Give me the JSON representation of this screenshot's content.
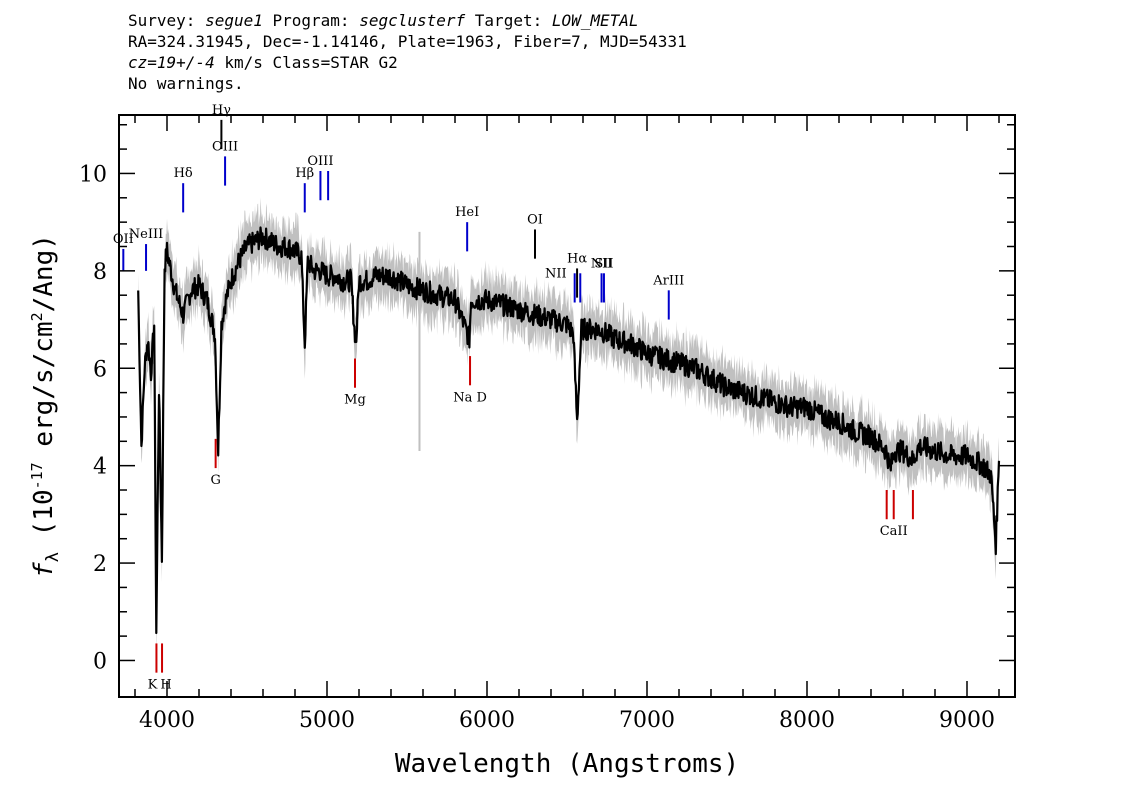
{
  "header": {
    "survey_label": "Survey: ",
    "survey": "segue1",
    "program_label": " Program: ",
    "program": "segclusterf",
    "target_label": " Target: ",
    "target": "LOW_METAL",
    "line2": "RA=324.31945, Dec=-1.14146, Plate=1963, Fiber=7, MJD=54331",
    "cz_label": "cz=19+/-4",
    "line3_rest": " km/s Class=STAR G2",
    "line4": "No warnings."
  },
  "chart_data": {
    "type": "line",
    "xlabel": "Wavelength (Angstroms)",
    "ylabel": "f_λ (10^-17 erg/s/cm^2/Ang)",
    "xlim": [
      3700,
      9300
    ],
    "ylim": [
      -0.75,
      11.2
    ],
    "xticks": [
      4000,
      5000,
      6000,
      7000,
      8000,
      9000
    ],
    "yticks": [
      0,
      2,
      4,
      6,
      8,
      10
    ],
    "grid": false,
    "series": [
      {
        "role": "flux",
        "color": "#000000",
        "x": [
          3820,
          3840,
          3860,
          3880,
          3900,
          3920,
          3933,
          3950,
          3968,
          3985,
          4000,
          4050,
          4101,
          4150,
          4200,
          4250,
          4300,
          4320,
          4340,
          4360,
          4400,
          4450,
          4500,
          4550,
          4600,
          4650,
          4700,
          4750,
          4800,
          4840,
          4861,
          4880,
          4920,
          4960,
          5000,
          5050,
          5100,
          5150,
          5172,
          5183,
          5200,
          5250,
          5300,
          5400,
          5500,
          5600,
          5700,
          5800,
          5890,
          5900,
          6000,
          6100,
          6200,
          6300,
          6400,
          6500,
          6540,
          6563,
          6590,
          6650,
          6700,
          6800,
          6900,
          7000,
          7100,
          7200,
          7300,
          7400,
          7500,
          7600,
          7700,
          7800,
          7900,
          8000,
          8100,
          8200,
          8300,
          8400,
          8498,
          8520,
          8542,
          8600,
          8662,
          8700,
          8800,
          8900,
          9000,
          9100,
          9150,
          9180,
          9200
        ],
        "y": [
          7.6,
          4.4,
          6.0,
          6.6,
          5.9,
          6.9,
          0.6,
          5.6,
          2.1,
          8.1,
          8.4,
          7.6,
          7.1,
          7.6,
          7.7,
          7.4,
          6.7,
          4.3,
          6.9,
          7.3,
          7.8,
          8.2,
          8.5,
          8.6,
          8.7,
          8.6,
          8.5,
          8.5,
          8.4,
          8.3,
          6.5,
          8.2,
          8.0,
          8.0,
          7.9,
          7.9,
          7.8,
          7.8,
          6.8,
          6.6,
          7.8,
          7.8,
          7.9,
          7.9,
          7.7,
          7.6,
          7.5,
          7.4,
          6.6,
          7.4,
          7.4,
          7.3,
          7.2,
          7.1,
          7.0,
          6.9,
          6.7,
          4.9,
          6.8,
          6.8,
          6.8,
          6.6,
          6.5,
          6.3,
          6.2,
          6.1,
          6.0,
          5.8,
          5.6,
          5.5,
          5.4,
          5.3,
          5.2,
          5.2,
          5.0,
          4.9,
          4.7,
          4.6,
          4.3,
          3.9,
          4.3,
          4.3,
          4.1,
          4.4,
          4.3,
          4.2,
          4.2,
          4.0,
          3.8,
          2.4,
          4.1
        ]
      }
    ],
    "line_markers": [
      {
        "label": "OII",
        "x": 3727,
        "y_top": 8.45,
        "y_bottom": 8.0,
        "color": "#0000cc",
        "position": "above"
      },
      {
        "label": "NeIII",
        "x": 3869,
        "y_top": 8.55,
        "y_bottom": 8.0,
        "color": "#0000cc",
        "position": "above"
      },
      {
        "label": "Hδ",
        "x": 4101,
        "y_top": 9.8,
        "y_bottom": 9.2,
        "color": "#0000cc",
        "position": "above"
      },
      {
        "label": "Hγ",
        "x": 4340,
        "y_top": 11.1,
        "y_bottom": 10.5,
        "color": "#000000",
        "position": "above"
      },
      {
        "label": "OIII",
        "x": 4363,
        "y_top": 10.35,
        "y_bottom": 9.75,
        "color": "#0000cc",
        "position": "above"
      },
      {
        "label": "Hβ",
        "x": 4861,
        "y_top": 9.8,
        "y_bottom": 9.2,
        "color": "#0000cc",
        "position": "above"
      },
      {
        "label": "OIII",
        "x": 4959,
        "y_top": 10.05,
        "y_bottom": 9.45,
        "color": "#0000cc",
        "position": "above"
      },
      {
        "label": "",
        "x": 5007,
        "y_top": 10.05,
        "y_bottom": 9.45,
        "color": "#0000cc",
        "position": "above"
      },
      {
        "label": "HeI",
        "x": 5876,
        "y_top": 9.0,
        "y_bottom": 8.4,
        "color": "#0000cc",
        "position": "above"
      },
      {
        "label": "OI",
        "x": 6300,
        "y_top": 8.85,
        "y_bottom": 8.25,
        "color": "#000000",
        "position": "above"
      },
      {
        "label": "NII",
        "x": 6548,
        "y_top": 7.95,
        "y_bottom": 7.35,
        "color": "#0000cc",
        "position": "left"
      },
      {
        "label": "Hα",
        "x": 6563,
        "y_top": 8.05,
        "y_bottom": 7.45,
        "color": "#000000",
        "position": "above"
      },
      {
        "label": "",
        "x": 6583,
        "y_top": 7.95,
        "y_bottom": 7.35,
        "color": "#0000cc",
        "position": "above"
      },
      {
        "label": "NII",
        "x": 6716,
        "y_top": 7.95,
        "y_bottom": 7.35,
        "color": "#0000cc",
        "position": "above"
      },
      {
        "label": "SII",
        "x": 6731,
        "y_top": 7.95,
        "y_bottom": 7.35,
        "color": "#0000cc",
        "position": "above"
      },
      {
        "label": "ArIII",
        "x": 7136,
        "y_top": 7.6,
        "y_bottom": 7.0,
        "color": "#0000cc",
        "position": "above"
      },
      {
        "label": "K",
        "x": 3934,
        "y_top": 0.35,
        "y_bottom": -0.25,
        "color": "#cc0000",
        "position": "below"
      },
      {
        "label": "H",
        "x": 3969,
        "y_top": 0.35,
        "y_bottom": -0.25,
        "color": "#cc0000",
        "position": "below"
      },
      {
        "label": "G",
        "x": 4304,
        "y_top": 4.55,
        "y_bottom": 3.95,
        "color": "#cc0000",
        "position": "below"
      },
      {
        "label": "Mg",
        "x": 5175,
        "y_top": 6.2,
        "y_bottom": 5.6,
        "color": "#cc0000",
        "position": "below"
      },
      {
        "label": "Na D",
        "x": 5894,
        "y_top": 6.25,
        "y_bottom": 5.65,
        "color": "#cc0000",
        "position": "below"
      },
      {
        "label": "",
        "x": 8498,
        "y_top": 3.5,
        "y_bottom": 2.9,
        "color": "#cc0000",
        "position": "below"
      },
      {
        "label": "CaII",
        "x": 8542,
        "y_top": 3.5,
        "y_bottom": 2.9,
        "color": "#cc0000",
        "position": "below"
      },
      {
        "label": "",
        "x": 8662,
        "y_top": 3.5,
        "y_bottom": 2.9,
        "color": "#cc0000",
        "position": "below"
      }
    ],
    "colors": {
      "flux": "#000000",
      "error_band": "#c0c0c0",
      "emission_markers": "#0000cc",
      "absorption_markers": "#cc0000"
    }
  }
}
